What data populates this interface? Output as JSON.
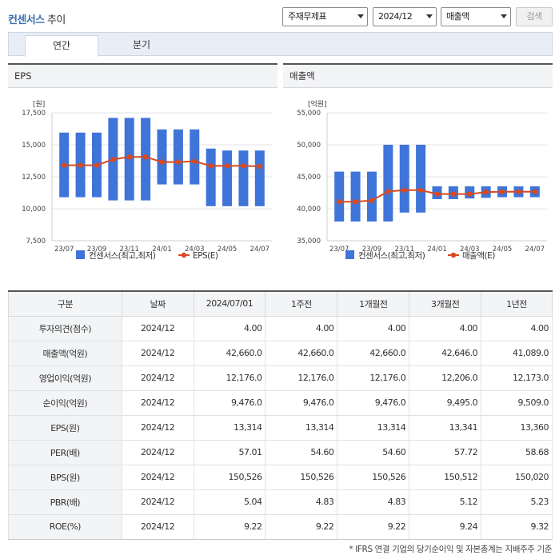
{
  "header": {
    "title_main": "컨센서스",
    "title_sub": "추이",
    "filters": [
      {
        "value": "주재무제표"
      },
      {
        "value": "2024/12"
      },
      {
        "value": "매출액"
      }
    ],
    "search_label": "검색"
  },
  "tabs": [
    {
      "label": "연간",
      "active": true
    },
    {
      "label": "분기",
      "active": false
    }
  ],
  "chart_data": [
    {
      "panel_title": "EPS",
      "type": "bar+line",
      "unit": "[원]",
      "ylim": [
        7500,
        17500
      ],
      "yticks": [
        "17,500",
        "15,000",
        "12,500",
        "10,000",
        "7,500"
      ],
      "x_tick_labels": [
        "23/07",
        "23/09",
        "23/11",
        "24/01",
        "24/03",
        "24/05",
        "24/07"
      ],
      "bar_color": "#3f74d8",
      "line_color": "#d8491f",
      "bars_hi": [
        15950,
        15950,
        15950,
        17100,
        17100,
        17100,
        16200,
        16200,
        16200,
        14700,
        14550,
        14550,
        14550
      ],
      "bars_lo": [
        10900,
        10900,
        10900,
        10650,
        10650,
        10650,
        11900,
        11900,
        11900,
        10200,
        10200,
        10200,
        10200
      ],
      "line": [
        13400,
        13400,
        13400,
        13850,
        14050,
        14050,
        13650,
        13650,
        13700,
        13350,
        13350,
        13350,
        13314
      ],
      "legend": [
        {
          "label": "컨센서스(최고,최저)",
          "kind": "bar"
        },
        {
          "label": "EPS(E)",
          "kind": "line"
        }
      ]
    },
    {
      "panel_title": "매출액",
      "type": "bar+line",
      "unit": "[억원]",
      "ylim": [
        35000,
        55000
      ],
      "yticks": [
        "55,000",
        "50,000",
        "45,000",
        "40,000",
        "35,000"
      ],
      "x_tick_labels": [
        "23/07",
        "23/09",
        "23/11",
        "24/01",
        "24/03",
        "24/05",
        "24/07"
      ],
      "bar_color": "#3f74d8",
      "line_color": "#d8491f",
      "bars_hi": [
        45800,
        45800,
        45800,
        50000,
        50000,
        50000,
        43500,
        43500,
        43500,
        43500,
        43500,
        43500,
        43500
      ],
      "bars_lo": [
        38000,
        38000,
        38000,
        38000,
        39400,
        39400,
        41500,
        41500,
        41600,
        41700,
        41800,
        41800,
        41800
      ],
      "line": [
        41100,
        41100,
        41300,
        42700,
        42900,
        42900,
        42300,
        42300,
        42300,
        42600,
        42660,
        42660,
        42660
      ],
      "legend": [
        {
          "label": "컨센서스(최고,최저)",
          "kind": "bar"
        },
        {
          "label": "매출액(E)",
          "kind": "line"
        }
      ]
    }
  ],
  "table": {
    "headers": [
      "구분",
      "날짜",
      "2024/07/01",
      "1주전",
      "1개월전",
      "3개월전",
      "1년전"
    ],
    "rows": [
      [
        "투자의견(점수)",
        "2024/12",
        "4.00",
        "4.00",
        "4.00",
        "4.00",
        "4.00"
      ],
      [
        "매출액(억원)",
        "2024/12",
        "42,660.0",
        "42,660.0",
        "42,660.0",
        "42,646.0",
        "41,089.0"
      ],
      [
        "영업이익(억원)",
        "2024/12",
        "12,176.0",
        "12,176.0",
        "12,176.0",
        "12,206.0",
        "12,173.0"
      ],
      [
        "순이익(억원)",
        "2024/12",
        "9,476.0",
        "9,476.0",
        "9,476.0",
        "9,495.0",
        "9,509.0"
      ],
      [
        "EPS(원)",
        "2024/12",
        "13,314",
        "13,314",
        "13,314",
        "13,341",
        "13,360"
      ],
      [
        "PER(배)",
        "2024/12",
        "57.01",
        "54.60",
        "54.60",
        "57.72",
        "58.68"
      ],
      [
        "BPS(원)",
        "2024/12",
        "150,526",
        "150,526",
        "150,526",
        "150,512",
        "150,020"
      ],
      [
        "PBR(배)",
        "2024/12",
        "5.04",
        "4.83",
        "4.83",
        "5.12",
        "5.23"
      ],
      [
        "ROE(%)",
        "2024/12",
        "9.22",
        "9.22",
        "9.22",
        "9.24",
        "9.32"
      ]
    ]
  },
  "footnote": "* IFRS 연결 기업의 당기순이익 및 자본총계는 지배주주 기준"
}
